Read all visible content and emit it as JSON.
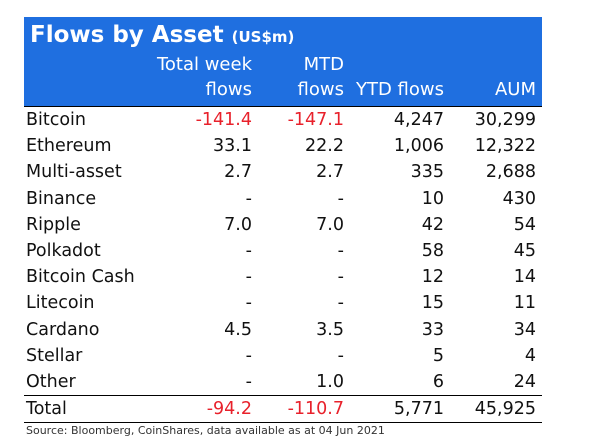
{
  "title": "Flows by Asset",
  "title_unit": "(US$m)",
  "headers": {
    "col1_line1": "Total week",
    "col1_line2": "flows",
    "col2_line1": "MTD",
    "col2_line2": "flows",
    "col3": "YTD flows",
    "col4": "AUM"
  },
  "rows": [
    {
      "name": "Bitcoin",
      "week": "-141.4",
      "mtd": "-147.1",
      "ytd": "4,247",
      "aum": "30,299"
    },
    {
      "name": "Ethereum",
      "week": "33.1",
      "mtd": "22.2",
      "ytd": "1,006",
      "aum": "12,322"
    },
    {
      "name": "Multi-asset",
      "week": "2.7",
      "mtd": "2.7",
      "ytd": "335",
      "aum": "2,688"
    },
    {
      "name": "Binance",
      "week": "-",
      "mtd": "-",
      "ytd": "10",
      "aum": "430"
    },
    {
      "name": "Ripple",
      "week": "7.0",
      "mtd": "7.0",
      "ytd": "42",
      "aum": "54"
    },
    {
      "name": "Polkadot",
      "week": "-",
      "mtd": "-",
      "ytd": "58",
      "aum": "45"
    },
    {
      "name": "Bitcoin Cash",
      "week": "-",
      "mtd": "-",
      "ytd": "12",
      "aum": "14"
    },
    {
      "name": "Litecoin",
      "week": "-",
      "mtd": "-",
      "ytd": "15",
      "aum": "11"
    },
    {
      "name": "Cardano",
      "week": "4.5",
      "mtd": "3.5",
      "ytd": "33",
      "aum": "34"
    },
    {
      "name": "Stellar",
      "week": "-",
      "mtd": "-",
      "ytd": "5",
      "aum": "4"
    },
    {
      "name": "Other",
      "week": "-",
      "mtd": "1.0",
      "ytd": "6",
      "aum": "24"
    }
  ],
  "total": {
    "name": "Total",
    "week": "-94.2",
    "mtd": "-110.7",
    "ytd": "5,771",
    "aum": "45,925"
  },
  "source": "Source: Bloomberg, CoinShares, data available as at 04 Jun 2021",
  "colors": {
    "header_bg": "#1f6fe0",
    "negative": "#e8212b"
  }
}
